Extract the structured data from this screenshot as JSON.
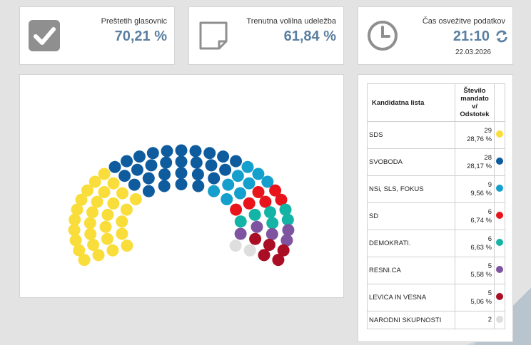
{
  "stats": {
    "counted": {
      "label": "Preštetih glasovnic",
      "value": "70,21 %"
    },
    "turnout": {
      "label": "Trenutna volilna udeležba",
      "value": "61,84 %"
    },
    "refresh": {
      "label": "Čas osvežitve podatkov",
      "time": "21:10",
      "date": "22.03.2026"
    }
  },
  "colors": {
    "icon_gray": "#8f8f8f",
    "accent": "#5b7fa0",
    "SDS": "#f9dd3a",
    "SVOBODA": "#0e5b9e",
    "NSI": "#149fcc",
    "SD": "#e8141b",
    "DEMOKRATI": "#13b3a5",
    "RESNI": "#7e53a0",
    "LEVICA": "#a90e24",
    "NARODNI": "#dedede"
  },
  "table": {
    "header_name": "Kandidatna lista",
    "header_num": "Število mandato v/ Odstotek",
    "rows": [
      {
        "name": "SDS",
        "seats": "29",
        "pct": "28,76 %",
        "color_key": "SDS"
      },
      {
        "name": "SVOBODA",
        "seats": "28",
        "pct": "28,17 %",
        "color_key": "SVOBODA"
      },
      {
        "name": "NSi, SLS, FOKUS",
        "seats": "9",
        "pct": "9,56 %",
        "color_key": "NSI"
      },
      {
        "name": "SD",
        "seats": "6",
        "pct": "6,74 %",
        "color_key": "SD"
      },
      {
        "name": "DEMOKRATI.",
        "seats": "6",
        "pct": "6,63 %",
        "color_key": "DEMOKRATI"
      },
      {
        "name": "RESNI.CA",
        "seats": "5",
        "pct": "5,58 %",
        "color_key": "RESNI"
      },
      {
        "name": "LEVICA IN VESNA",
        "seats": "5",
        "pct": "5,06 %",
        "color_key": "LEVICA"
      },
      {
        "name": "NARODNI SKUPNOSTI",
        "seats": "2",
        "pct": "",
        "color_key": "NARODNI"
      }
    ]
  },
  "seat_chart": {
    "total_seats": 90,
    "seat_colors_in_order": [
      "SDS",
      "SVOBODA",
      "NSI",
      "SD",
      "DEMOKRATI",
      "RESNI",
      "LEVICA",
      "NARODNI"
    ]
  }
}
